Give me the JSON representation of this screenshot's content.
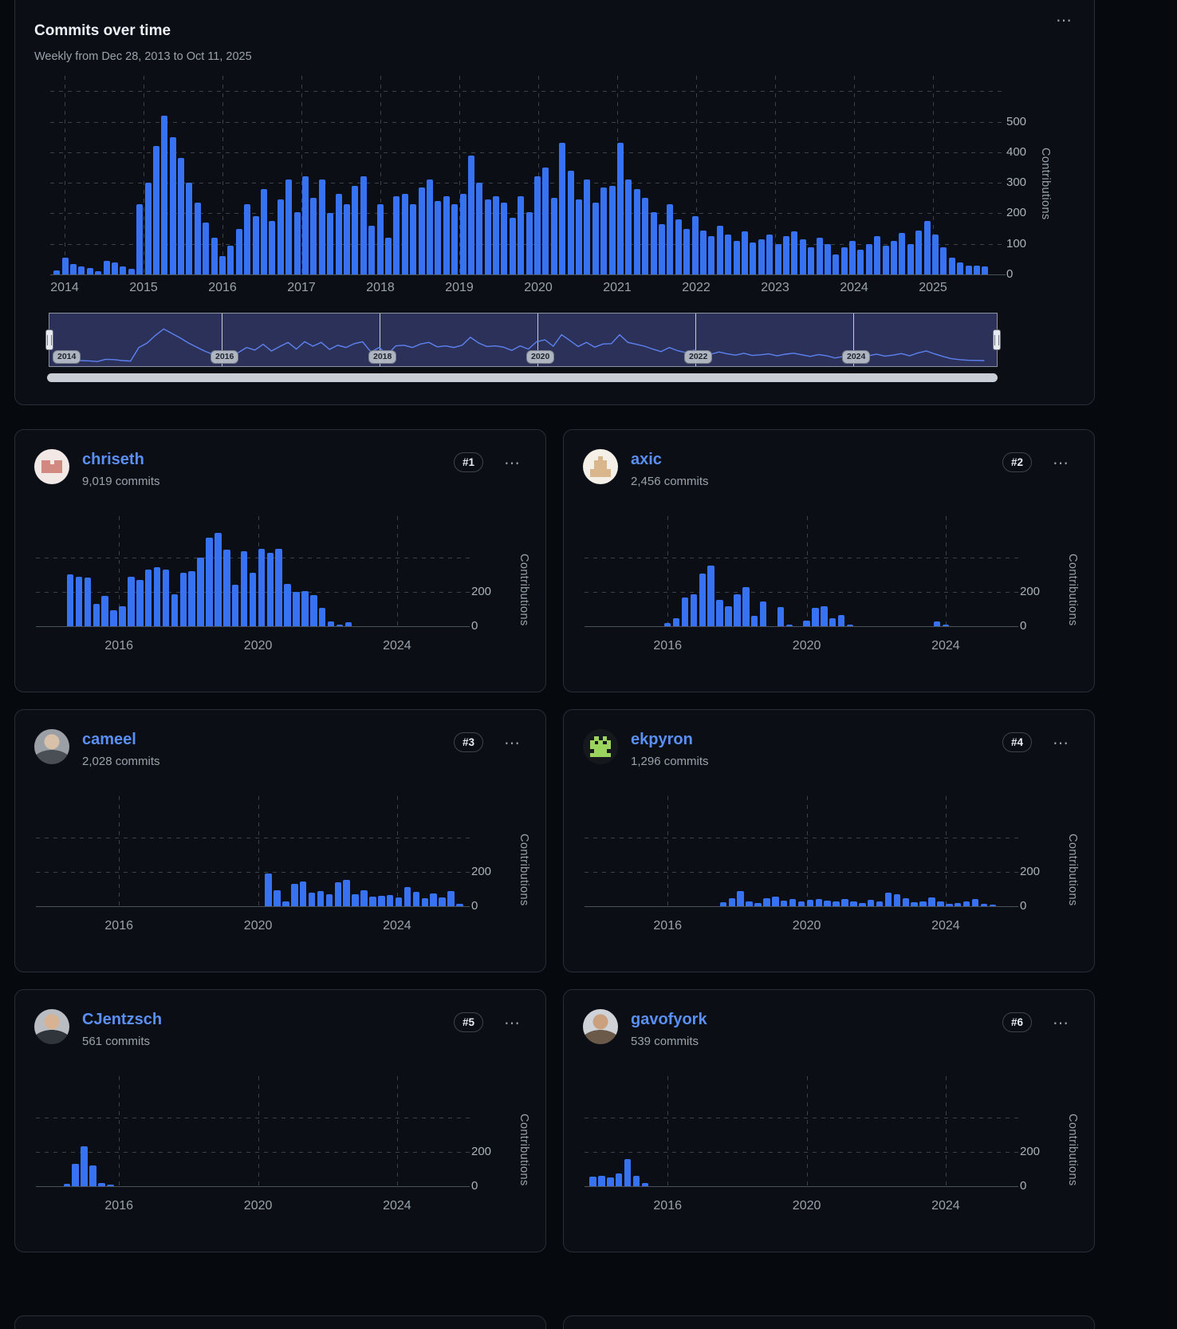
{
  "main": {
    "title": "Commits over time",
    "subtitle": "Weekly from Dec 28, 2013 to Oct 11, 2025",
    "ylabel": "Contributions"
  },
  "icons": {
    "kebab": "⋯"
  },
  "colors": {
    "bar": "#3772f2",
    "link": "#5a8ff5",
    "brush_bg": "#2b3158",
    "brush_line": "#5d82f0",
    "card_bg": "#0b0f15",
    "page_bg": "#060a0f"
  },
  "brush": {
    "years": [
      2014,
      2016,
      2018,
      2020,
      2022,
      2024
    ]
  },
  "contributors": [
    {
      "name": "chriseth",
      "commits": "9,019 commits",
      "rank": "#1",
      "avatar": {
        "kind": "identicon",
        "bg": "#f2e8e6",
        "fg": "#d2897f",
        "pattern": [
          "00000",
          "11011",
          "11111",
          "11111",
          "00000"
        ]
      }
    },
    {
      "name": "axic",
      "commits": "2,456 commits",
      "rank": "#2",
      "avatar": {
        "kind": "identicon",
        "bg": "#f4efe7",
        "fg": "#d9b68c",
        "pattern": [
          "00100",
          "01110",
          "01110",
          "11111",
          "11111"
        ]
      }
    },
    {
      "name": "cameel",
      "commits": "2,028 commits",
      "rank": "#3",
      "avatar": {
        "kind": "photo",
        "bg": "#9aa0a6",
        "face": "#d9c0a8",
        "body": "#4a4f55"
      }
    },
    {
      "name": "ekpyron",
      "commits": "1,296 commits",
      "rank": "#4",
      "avatar": {
        "kind": "identicon",
        "bg": "#15191d",
        "fg": "#9ad45f",
        "pattern": [
          "01010",
          "10101",
          "11111",
          "01110",
          "11111"
        ]
      }
    },
    {
      "name": "CJentzsch",
      "commits": "561 commits",
      "rank": "#5",
      "avatar": {
        "kind": "photo",
        "bg": "#b9bdc2",
        "face": "#d8b393",
        "body": "#30353b"
      }
    },
    {
      "name": "gavofyork",
      "commits": "539 commits",
      "rank": "#6",
      "avatar": {
        "kind": "photo",
        "bg": "#cfd3d8",
        "face": "#cba07e",
        "body": "#6b5a4a"
      }
    }
  ],
  "chart_data": [
    {
      "id": "main",
      "type": "bar",
      "title": "Commits over time",
      "subtitle": "Weekly from Dec 28, 2013 to Oct 11, 2025",
      "ylabel": "Contributions",
      "x_domain": [
        2013.818,
        2025.818
      ],
      "x_ticks": [
        2014,
        2015,
        2016,
        2017,
        2018,
        2019,
        2020,
        2021,
        2022,
        2023,
        2024,
        2025
      ],
      "y_grid": [
        100,
        200,
        300,
        400,
        500,
        600
      ],
      "y_tick_labels": [
        [
          500,
          "500"
        ],
        [
          400,
          "400"
        ],
        [
          300,
          "300"
        ],
        [
          200,
          "200"
        ],
        [
          100,
          "100"
        ],
        [
          0,
          "0"
        ]
      ],
      "ymax": 650,
      "grid": "dashed",
      "legend": "none",
      "series": {
        "start": 2013.9,
        "interval": 0.105,
        "values": [
          12,
          55,
          35,
          25,
          20,
          10,
          45,
          40,
          25,
          18,
          230,
          300,
          420,
          520,
          450,
          380,
          300,
          235,
          170,
          120,
          60,
          95,
          150,
          230,
          190,
          280,
          175,
          245,
          310,
          205,
          320,
          250,
          310,
          200,
          265,
          230,
          290,
          320,
          160,
          230,
          120,
          255,
          265,
          230,
          285,
          310,
          240,
          255,
          230,
          265,
          390,
          300,
          245,
          255,
          235,
          185,
          255,
          205,
          320,
          350,
          250,
          430,
          340,
          245,
          310,
          235,
          285,
          290,
          430,
          310,
          280,
          250,
          205,
          165,
          230,
          180,
          150,
          190,
          145,
          125,
          160,
          130,
          110,
          140,
          105,
          115,
          130,
          100,
          125,
          140,
          115,
          90,
          120,
          100,
          65,
          90,
          110,
          80,
          100,
          125,
          95,
          110,
          135,
          100,
          145,
          175,
          130,
          90,
          55,
          40,
          30,
          28,
          25
        ]
      }
    },
    {
      "id": "chriseth",
      "type": "bar",
      "ylabel": "Contributions",
      "x_domain": [
        2013.61,
        2025.86
      ],
      "x_ticks": [
        2016,
        2020,
        2024
      ],
      "y_grid": [
        200,
        400
      ],
      "y_tick_labels": [
        [
          200,
          "200"
        ],
        [
          0,
          "0"
        ]
      ],
      "ymax": 640,
      "series": {
        "start": 2014.6,
        "interval": 0.25,
        "values": [
          300,
          290,
          282,
          130,
          175,
          92,
          115,
          288,
          268,
          330,
          345,
          330,
          185,
          312,
          318,
          400,
          515,
          545,
          445,
          240,
          438,
          310,
          452,
          428,
          450,
          245,
          198,
          205,
          180,
          105,
          28,
          6,
          22
        ]
      }
    },
    {
      "id": "axic",
      "type": "bar",
      "ylabel": "Contributions",
      "x_domain": [
        2013.61,
        2025.86
      ],
      "x_ticks": [
        2016,
        2020,
        2024
      ],
      "y_grid": [
        200,
        400
      ],
      "y_tick_labels": [
        [
          200,
          "200"
        ],
        [
          0,
          "0"
        ]
      ],
      "ymax": 640,
      "series": {
        "start": 2016.0,
        "interval": 0.25,
        "values": [
          18,
          48,
          165,
          188,
          305,
          352,
          152,
          115,
          188,
          228,
          60,
          145,
          0,
          112,
          10,
          0,
          35,
          108,
          115,
          45,
          66,
          10,
          0,
          0,
          0,
          0,
          0,
          0,
          0,
          0,
          0,
          28,
          8
        ]
      }
    },
    {
      "id": "cameel",
      "type": "bar",
      "ylabel": "Contributions",
      "x_domain": [
        2013.61,
        2025.86
      ],
      "x_ticks": [
        2016,
        2020,
        2024
      ],
      "y_grid": [
        200,
        400
      ],
      "y_tick_labels": [
        [
          200,
          "200"
        ],
        [
          0,
          "0"
        ]
      ],
      "ymax": 640,
      "series": {
        "start": 2020.3,
        "interval": 0.25,
        "values": [
          192,
          95,
          28,
          128,
          145,
          78,
          88,
          70,
          140,
          152,
          72,
          95,
          55,
          62,
          66,
          50,
          110,
          85,
          46,
          76,
          52,
          90,
          12
        ]
      }
    },
    {
      "id": "ekpyron",
      "type": "bar",
      "ylabel": "Contributions",
      "x_domain": [
        2013.61,
        2025.86
      ],
      "x_ticks": [
        2016,
        2020,
        2024
      ],
      "y_grid": [
        200,
        400
      ],
      "y_tick_labels": [
        [
          200,
          "200"
        ],
        [
          0,
          "0"
        ]
      ],
      "ymax": 640,
      "series": {
        "start": 2017.6,
        "interval": 0.25,
        "values": [
          25,
          45,
          88,
          30,
          20,
          46,
          56,
          35,
          42,
          30,
          36,
          40,
          34,
          30,
          42,
          26,
          20,
          36,
          30,
          78,
          70,
          46,
          25,
          30,
          50,
          26,
          15,
          20,
          26,
          42,
          16,
          8
        ]
      }
    },
    {
      "id": "CJentzsch",
      "type": "bar",
      "ylabel": "Contributions",
      "x_domain": [
        2013.61,
        2025.86
      ],
      "x_ticks": [
        2016,
        2020,
        2024
      ],
      "y_grid": [
        200,
        400
      ],
      "y_tick_labels": [
        [
          200,
          "200"
        ],
        [
          0,
          "0"
        ]
      ],
      "ymax": 640,
      "series": {
        "start": 2014.5,
        "interval": 0.25,
        "values": [
          12,
          130,
          232,
          120,
          18,
          6
        ]
      }
    },
    {
      "id": "gavofyork",
      "type": "bar",
      "ylabel": "Contributions",
      "x_domain": [
        2013.61,
        2025.86
      ],
      "x_ticks": [
        2016,
        2020,
        2024
      ],
      "y_grid": [
        200,
        400
      ],
      "y_tick_labels": [
        [
          200,
          "200"
        ],
        [
          0,
          "0"
        ]
      ],
      "ymax": 640,
      "series": {
        "start": 2013.85,
        "interval": 0.25,
        "values": [
          55,
          62,
          50,
          75,
          160,
          60,
          18
        ]
      }
    }
  ]
}
